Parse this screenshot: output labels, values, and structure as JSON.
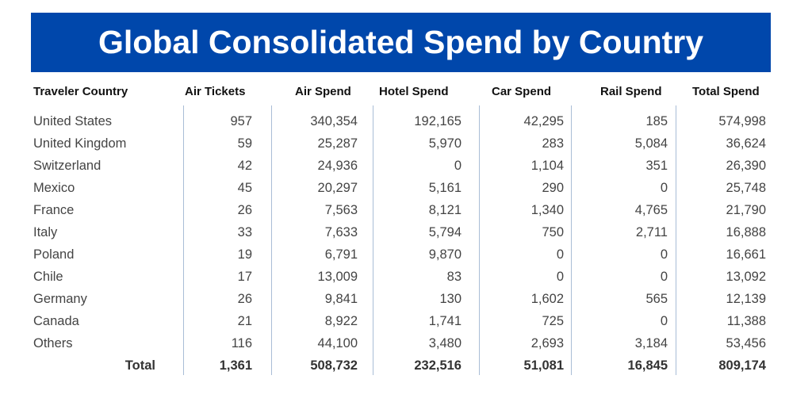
{
  "title": "Global Consolidated Spend by Country",
  "colors": {
    "banner": "#0047AB",
    "title_text": "#FFFFFF"
  },
  "table": {
    "headers": [
      "Traveler Country",
      "Air Tickets",
      "Air Spend",
      "Hotel Spend",
      "Car Spend",
      "Rail Spend",
      "Total Spend"
    ],
    "rows": [
      [
        "United States",
        "957",
        "340,354",
        "192,165",
        "42,295",
        "185",
        "574,998"
      ],
      [
        "United Kingdom",
        "59",
        "25,287",
        "5,970",
        "283",
        "5,084",
        "36,624"
      ],
      [
        "Switzerland",
        "42",
        "24,936",
        "0",
        "1,104",
        "351",
        "26,390"
      ],
      [
        "Mexico",
        "45",
        "20,297",
        "5,161",
        "290",
        "0",
        "25,748"
      ],
      [
        "France",
        "26",
        "7,563",
        "8,121",
        "1,340",
        "4,765",
        "21,790"
      ],
      [
        "Italy",
        "33",
        "7,633",
        "5,794",
        "750",
        "2,711",
        "16,888"
      ],
      [
        "Poland",
        "19",
        "6,791",
        "9,870",
        "0",
        "0",
        "16,661"
      ],
      [
        "Chile",
        "17",
        "13,009",
        "83",
        "0",
        "0",
        "13,092"
      ],
      [
        "Germany",
        "26",
        "9,841",
        "130",
        "1,602",
        "565",
        "12,139"
      ],
      [
        "Canada",
        "21",
        "8,922",
        "1,741",
        "725",
        "0",
        "11,388"
      ],
      [
        "Others",
        "116",
        "44,100",
        "3,480",
        "2,693",
        "3,184",
        "53,456"
      ]
    ],
    "total": [
      "Total",
      "1,361",
      "508,732",
      "232,516",
      "51,081",
      "16,845",
      "809,174"
    ]
  }
}
